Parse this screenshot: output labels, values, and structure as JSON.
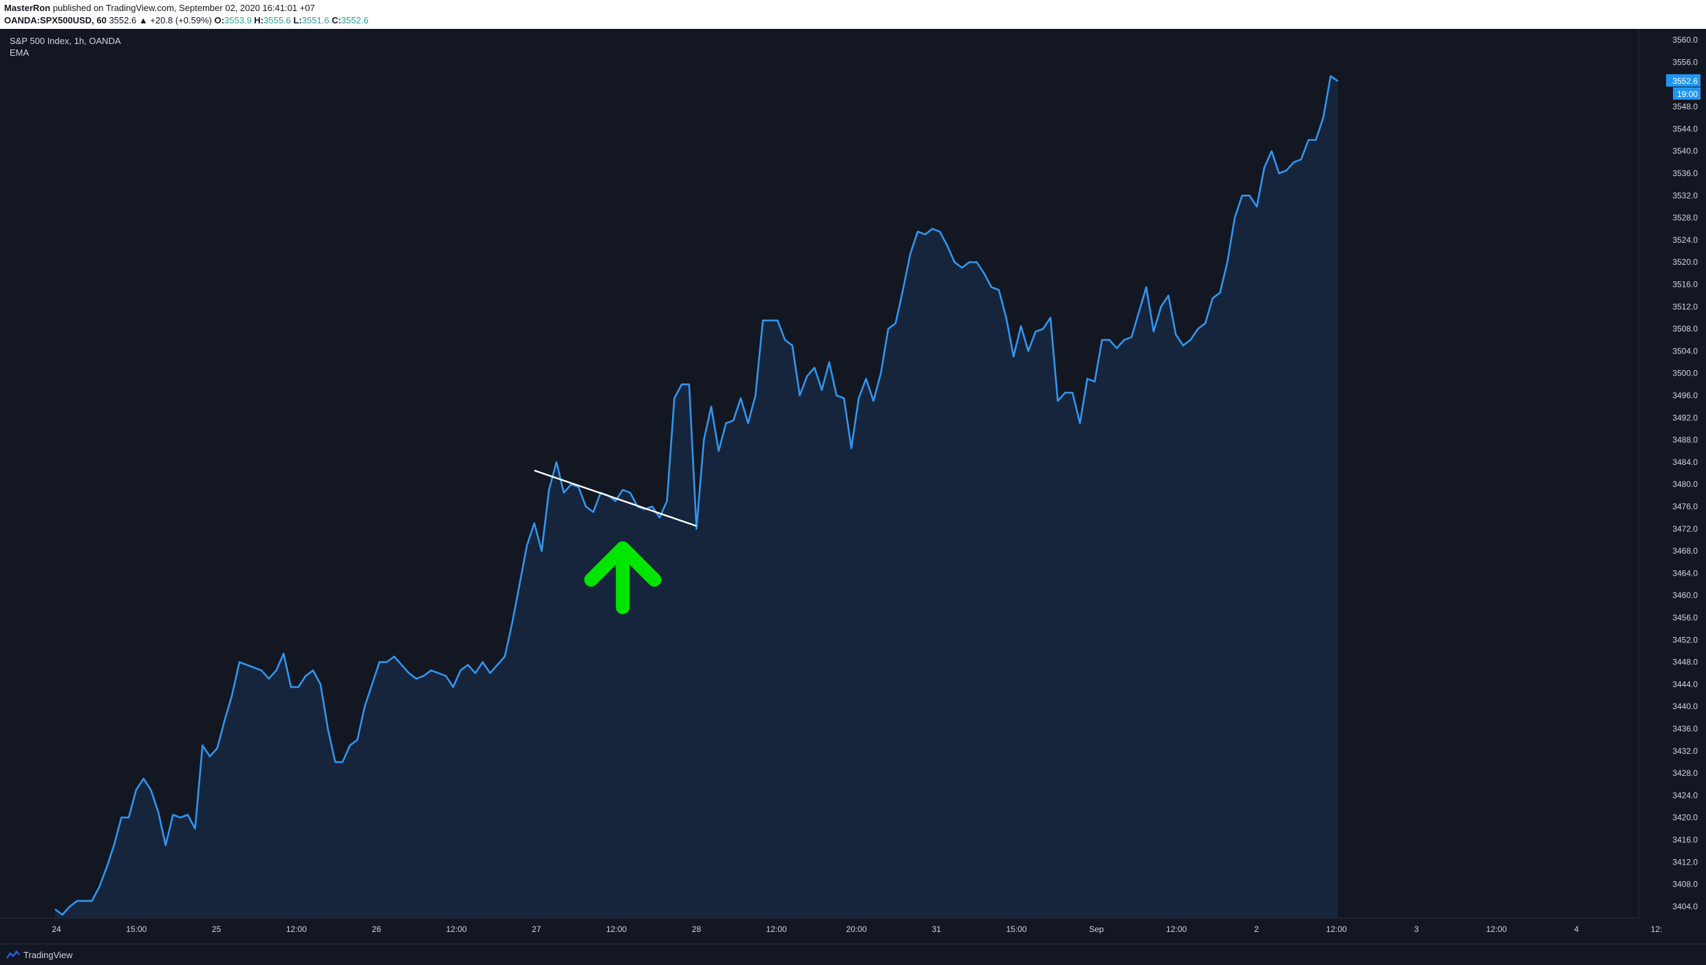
{
  "header": {
    "author": "MasterRon",
    "published": "published on TradingView.com, September 02, 2020 16:41:01 +07",
    "symbol": "OANDA:SPX500USD, 60",
    "last": "3552.6",
    "change": "▲ +20.8 (+0.59%)",
    "o_label": "O:",
    "o": "3553.9",
    "h_label": "H:",
    "h": "3555.6",
    "l_label": "L:",
    "l": "3551.6",
    "c_label": "C:",
    "c": "3552.6"
  },
  "legend": {
    "title": "S&P 500 Index, 1h, OANDA",
    "indicator": "EMA"
  },
  "footer": {
    "brand": "TradingView",
    "logo_icon": "tradingview-logo-icon"
  },
  "colors": {
    "background": "#131722",
    "line": "#2f96f0",
    "area": "#1a2b45",
    "trendline": "#ffffff",
    "arrow": "#00e600",
    "axis_text": "#d1d4dc",
    "price_label_bg": "#2196f3"
  },
  "chart_data": {
    "type": "area",
    "title": "S&P 500 Index, 1h, OANDA",
    "ylim": [
      3402.0,
      3562.0
    ],
    "y_ticks": [
      "3560.0",
      "3556.0",
      "3548.0",
      "3544.0",
      "3540.0",
      "3536.0",
      "3532.0",
      "3528.0",
      "3524.0",
      "3520.0",
      "3516.0",
      "3512.0",
      "3508.0",
      "3504.0",
      "3500.0",
      "3496.0",
      "3492.0",
      "3488.0",
      "3484.0",
      "3480.0",
      "3476.0",
      "3472.0",
      "3468.0",
      "3464.0",
      "3460.0",
      "3456.0",
      "3452.0",
      "3448.0",
      "3444.0",
      "3440.0",
      "3436.0",
      "3432.0",
      "3428.0",
      "3424.0",
      "3420.0",
      "3416.0",
      "3412.0",
      "3408.0",
      "3404.0"
    ],
    "x_ticks": [
      "24",
      "15:00",
      "25",
      "12:00",
      "26",
      "12:00",
      "27",
      "12:00",
      "28",
      "12:00",
      "20:00",
      "31",
      "15:00",
      "Sep",
      "12:00",
      "2",
      "12:00",
      "3",
      "12:00",
      "4",
      "12:"
    ],
    "current_price": "3552.6",
    "current_time": "19:00",
    "grid": false,
    "series": [
      {
        "values": [
          3403.5,
          3402.5,
          3404.0,
          3405.0,
          3405.0,
          3405.0,
          3407.5,
          3411.0,
          3415.0,
          3420.0,
          3420.0,
          3425.0,
          3427.0,
          3425.0,
          3421.0,
          3415.0,
          3420.5,
          3420.0,
          3420.5,
          3418.0,
          3433.0,
          3431.0,
          3432.5,
          3437.5,
          3442.0,
          3448.0,
          3447.5,
          3447.0,
          3446.5,
          3445.0,
          3446.5,
          3449.5,
          3443.5,
          3443.5,
          3445.5,
          3446.5,
          3444.0,
          3436.0,
          3430.0,
          3430.0,
          3433.0,
          3434.0,
          3440.0,
          3444.0,
          3448.0,
          3448.0,
          3449.0,
          3447.5,
          3446.0,
          3445.0,
          3445.5,
          3446.5,
          3446.0,
          3445.5,
          3443.5,
          3446.5,
          3447.5,
          3446.0,
          3448.0,
          3446.0,
          3447.5,
          3449.0,
          3455.0,
          3462.0,
          3469.0,
          3473.0,
          3468.0,
          3479.0,
          3484.0,
          3478.5,
          3480.0,
          3479.5,
          3476.0,
          3475.0,
          3478.5,
          3478.0,
          3477.0,
          3479.0,
          3478.5,
          3476.0,
          3475.5,
          3476.0,
          3474.0,
          3477.0,
          3495.5,
          3498.0,
          3498.0,
          3472.0,
          3488.0,
          3494.0,
          3486.0,
          3491.0,
          3491.5,
          3495.5,
          3491.0,
          3496.0,
          3509.5,
          3509.5,
          3509.5,
          3506.0,
          3505.0,
          3496.0,
          3499.5,
          3501.0,
          3497.0,
          3502.0,
          3496.0,
          3495.5,
          3486.5,
          3495.5,
          3499.0,
          3495.0,
          3500.0,
          3508.0,
          3509.0,
          3515.0,
          3521.5,
          3525.5,
          3525.0,
          3526.0,
          3525.5,
          3523.0,
          3520.0,
          3519.0,
          3520.0,
          3520.0,
          3518.0,
          3515.5,
          3515.0,
          3510.0,
          3503.0,
          3508.5,
          3504.0,
          3507.5,
          3508.0,
          3510.0,
          3495.0,
          3496.5,
          3496.5,
          3491.0,
          3499.0,
          3498.5,
          3506.0,
          3506.0,
          3504.5,
          3506.0,
          3506.5,
          3511.0,
          3515.5,
          3507.5,
          3512.0,
          3514.0,
          3507.0,
          3505.0,
          3506.0,
          3508.0,
          3509.0,
          3513.5,
          3514.5,
          3520.0,
          3528.0,
          3532.0,
          3532.0,
          3530.0,
          3537.0,
          3540.0,
          3536.0,
          3536.5,
          3538.0,
          3538.5,
          3542.0,
          3542.0,
          3546.0,
          3553.5,
          3552.6
        ]
      }
    ],
    "annotations": [
      {
        "type": "trendline",
        "from": [
          65,
          3482.5
        ],
        "to": [
          87,
          3472.5
        ]
      },
      {
        "type": "arrow-up",
        "at": [
          77,
          3469.0
        ]
      }
    ]
  }
}
